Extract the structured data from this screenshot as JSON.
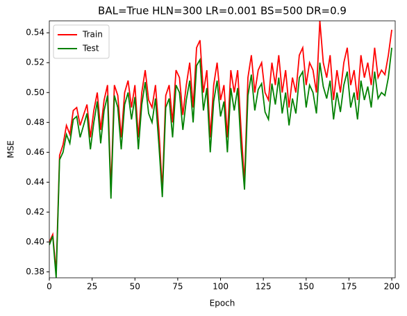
{
  "chart_data": {
    "type": "line",
    "title": "BAL=True HLN=300 LR=0.001 BS=500 DR=0.9",
    "x_label": "Epoch",
    "y_label": "MSE",
    "x": [
      0,
      2,
      4,
      6,
      8,
      10,
      12,
      14,
      16,
      18,
      20,
      22,
      24,
      26,
      28,
      30,
      32,
      34,
      36,
      38,
      40,
      42,
      44,
      46,
      48,
      50,
      52,
      54,
      56,
      58,
      60,
      62,
      64,
      66,
      68,
      70,
      72,
      74,
      76,
      78,
      80,
      82,
      84,
      86,
      88,
      90,
      92,
      94,
      96,
      98,
      100,
      102,
      104,
      106,
      108,
      110,
      112,
      114,
      116,
      118,
      120,
      122,
      124,
      126,
      128,
      130,
      132,
      134,
      136,
      138,
      140,
      142,
      144,
      146,
      148,
      150,
      152,
      154,
      156,
      158,
      160,
      162,
      164,
      166,
      168,
      170,
      172,
      174,
      176,
      178,
      180,
      182,
      184,
      186,
      188,
      190,
      192,
      194,
      196,
      198,
      200
    ],
    "series": [
      {
        "name": "Train",
        "color": "#ff0000",
        "values": [
          0.4,
          0.405,
          0.38,
          0.458,
          0.465,
          0.478,
          0.472,
          0.488,
          0.49,
          0.478,
          0.485,
          0.492,
          0.47,
          0.488,
          0.5,
          0.475,
          0.495,
          0.505,
          0.435,
          0.505,
          0.498,
          0.47,
          0.5,
          0.508,
          0.49,
          0.505,
          0.47,
          0.5,
          0.515,
          0.495,
          0.49,
          0.505,
          0.475,
          0.435,
          0.498,
          0.505,
          0.48,
          0.515,
          0.51,
          0.485,
          0.505,
          0.52,
          0.49,
          0.53,
          0.535,
          0.5,
          0.515,
          0.47,
          0.505,
          0.52,
          0.495,
          0.505,
          0.47,
          0.515,
          0.5,
          0.515,
          0.475,
          0.44,
          0.51,
          0.525,
          0.5,
          0.515,
          0.52,
          0.5,
          0.495,
          0.52,
          0.505,
          0.525,
          0.5,
          0.515,
          0.49,
          0.51,
          0.5,
          0.525,
          0.53,
          0.505,
          0.52,
          0.515,
          0.5,
          0.548,
          0.52,
          0.51,
          0.525,
          0.495,
          0.515,
          0.5,
          0.52,
          0.53,
          0.505,
          0.515,
          0.495,
          0.525,
          0.51,
          0.52,
          0.505,
          0.53,
          0.51,
          0.515,
          0.512,
          0.525,
          0.542
        ]
      },
      {
        "name": "Test",
        "color": "#008000",
        "values": [
          0.398,
          0.404,
          0.376,
          0.455,
          0.46,
          0.472,
          0.466,
          0.482,
          0.484,
          0.47,
          0.478,
          0.486,
          0.462,
          0.48,
          0.494,
          0.466,
          0.488,
          0.498,
          0.429,
          0.498,
          0.49,
          0.462,
          0.492,
          0.5,
          0.482,
          0.497,
          0.462,
          0.492,
          0.507,
          0.486,
          0.48,
          0.496,
          0.465,
          0.43,
          0.49,
          0.496,
          0.47,
          0.505,
          0.5,
          0.475,
          0.495,
          0.508,
          0.48,
          0.518,
          0.522,
          0.488,
          0.503,
          0.46,
          0.494,
          0.508,
          0.484,
          0.494,
          0.46,
          0.503,
          0.488,
          0.503,
          0.463,
          0.435,
          0.498,
          0.512,
          0.488,
          0.502,
          0.506,
          0.487,
          0.482,
          0.506,
          0.492,
          0.51,
          0.486,
          0.5,
          0.478,
          0.496,
          0.486,
          0.51,
          0.514,
          0.49,
          0.505,
          0.5,
          0.486,
          0.52,
          0.504,
          0.496,
          0.508,
          0.482,
          0.5,
          0.487,
          0.505,
          0.514,
          0.49,
          0.5,
          0.482,
          0.508,
          0.495,
          0.504,
          0.49,
          0.514,
          0.496,
          0.5,
          0.498,
          0.51,
          0.53
        ]
      }
    ],
    "xlim": [
      0,
      202
    ],
    "ylim": [
      0.376,
      0.548
    ],
    "xticks": [
      0,
      25,
      50,
      75,
      100,
      125,
      150,
      175,
      200
    ],
    "yticks": [
      {
        "value": 0.38,
        "label": "0.38"
      },
      {
        "value": 0.4,
        "label": "0.40"
      },
      {
        "value": 0.42,
        "label": "0.42"
      },
      {
        "value": 0.44,
        "label": "0.44"
      },
      {
        "value": 0.46,
        "label": "0.46"
      },
      {
        "value": 0.48,
        "label": "0.48"
      },
      {
        "value": 0.5,
        "label": "0.50"
      },
      {
        "value": 0.52,
        "label": "0.52"
      },
      {
        "value": 0.54,
        "label": "0.54"
      }
    ],
    "legend": "upper left",
    "grid": false
  }
}
